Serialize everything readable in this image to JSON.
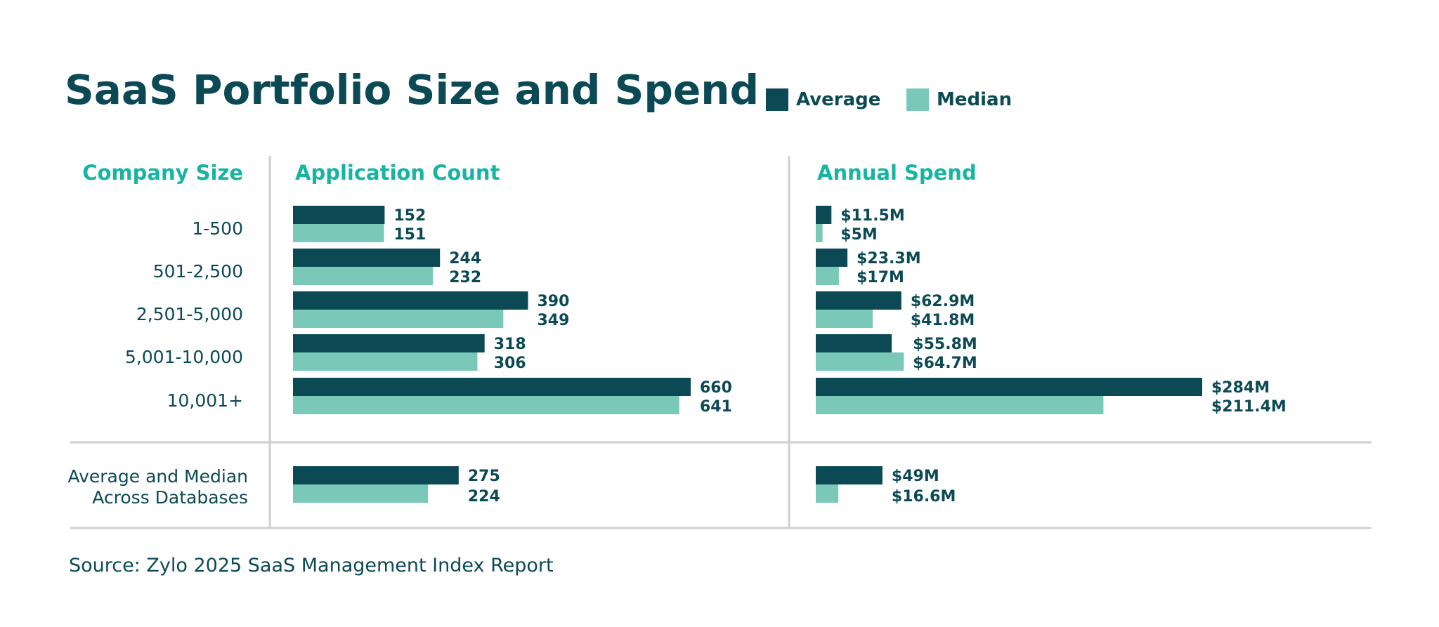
{
  "chart_data": {
    "type": "bar",
    "orientation": "horizontal",
    "title": "SaaS Portfolio Size and Spend",
    "legend": {
      "placement": "top-right",
      "entries": [
        "Average",
        "Median"
      ]
    },
    "colors": {
      "average": "#0b4a55",
      "median": "#79c8b8",
      "heading": "#18b4a3",
      "text": "#0b4a55",
      "rule": "#cfcfcf"
    },
    "category_header": "Company Size",
    "categories": [
      "1-500",
      "501-2,500",
      "2,501-5,000",
      "5,001-10,000",
      "10,001+"
    ],
    "panels": [
      {
        "id": "application_count",
        "title": "Application Count",
        "xlim": [
          0,
          660
        ],
        "series": [
          {
            "name": "Average",
            "values": [
              152,
              244,
              390,
              318,
              660
            ],
            "labels": [
              "152",
              "244",
              "390",
              "318",
              "660"
            ]
          },
          {
            "name": "Median",
            "values": [
              151,
              232,
              349,
              306,
              641
            ],
            "labels": [
              "151",
              "232",
              "349",
              "306",
              "641"
            ]
          }
        ],
        "summary": {
          "average": 275,
          "median": 224,
          "average_label": "275",
          "median_label": "224"
        }
      },
      {
        "id": "annual_spend",
        "title": "Annual Spend",
        "unit": "$M",
        "xlim": [
          0,
          284
        ],
        "series": [
          {
            "name": "Average",
            "values": [
              11.5,
              23.3,
              62.9,
              55.8,
              284
            ],
            "labels": [
              "$11.5M",
              "$23.3M",
              "$62.9M",
              "$55.8M",
              "$284M"
            ]
          },
          {
            "name": "Median",
            "values": [
              5,
              17,
              41.8,
              64.7,
              211.4
            ],
            "labels": [
              "$5M",
              "$17M",
              "$41.8M",
              "$64.7M",
              "$211.4M"
            ]
          }
        ],
        "summary": {
          "average": 49,
          "median": 16.6,
          "average_label": "$49M",
          "median_label": "$16.6M"
        }
      }
    ],
    "summary_label": [
      "Average and Median",
      "Across Databases"
    ],
    "source": "Source: Zylo 2025 SaaS Management Index Report"
  }
}
